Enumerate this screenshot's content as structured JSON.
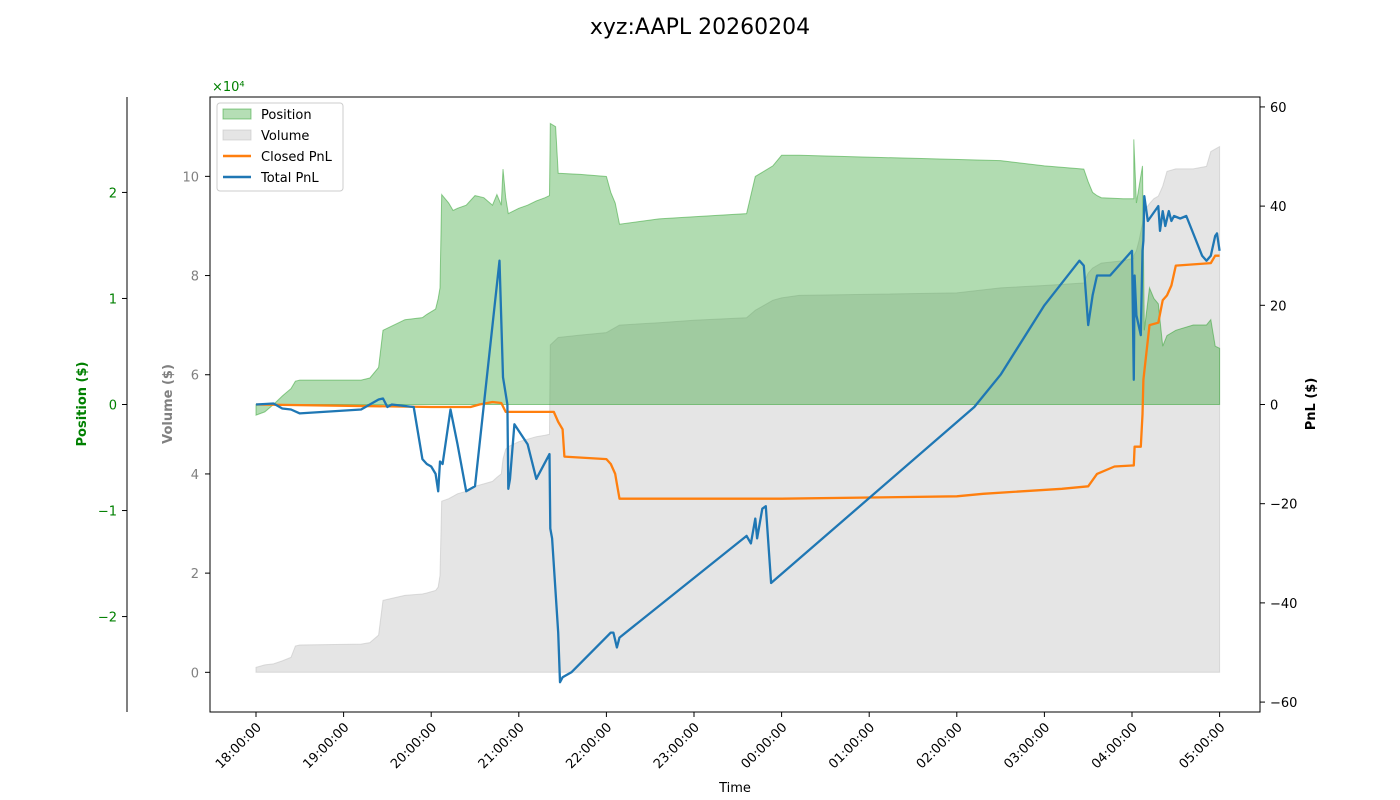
{
  "chart_data": {
    "type": "line",
    "title": "xyz:AAPL 20260204",
    "xlabel": "Time",
    "x_ticks": [
      "18:00:00",
      "19:00:00",
      "20:00:00",
      "21:00:00",
      "22:00:00",
      "23:00:00",
      "00:00:00",
      "01:00:00",
      "02:00:00",
      "03:00:00",
      "04:00:00",
      "05:00:00"
    ],
    "axes": {
      "position": {
        "label": "Position ($)",
        "ylim": [
          -2.9,
          2.9
        ],
        "ticks": [
          -2,
          -1,
          0,
          1,
          2
        ],
        "tick_labels": [
          "−2",
          "−1",
          "0",
          "1",
          "2"
        ],
        "exponent_label": "×10⁴",
        "color": "#008000"
      },
      "volume": {
        "label": "Volume ($)",
        "ylim": [
          -0.8,
          11.6
        ],
        "ticks": [
          0,
          2,
          4,
          6,
          8,
          10
        ],
        "tick_labels": [
          "0",
          "2",
          "4",
          "6",
          "8",
          "10"
        ],
        "color": "#808080"
      },
      "pnl": {
        "label": "PnL ($)",
        "ylim": [
          -62,
          62
        ],
        "ticks": [
          -60,
          -40,
          -20,
          0,
          20,
          40,
          60
        ],
        "tick_labels": [
          "−60",
          "−40",
          "−20",
          "0",
          "20",
          "40",
          "60"
        ],
        "color": "#000000"
      }
    },
    "legend": {
      "placement": "top-left",
      "entries": [
        "Position",
        "Volume",
        "Closed PnL",
        "Total PnL"
      ]
    },
    "colors": {
      "position": "#2ca02c",
      "volume": "#bdbdbd",
      "closed_pnl": "#ff7f0e",
      "total_pnl": "#1f77b4"
    },
    "series": [
      {
        "name": "Position",
        "axis": "position",
        "points": [
          [
            0.0,
            -0.1
          ],
          [
            0.1,
            -0.07
          ],
          [
            0.2,
            0.0
          ],
          [
            0.3,
            0.08
          ],
          [
            0.4,
            0.15
          ],
          [
            0.45,
            0.22
          ],
          [
            0.5,
            0.23
          ],
          [
            1.2,
            0.23
          ],
          [
            1.3,
            0.25
          ],
          [
            1.4,
            0.35
          ],
          [
            1.45,
            0.7
          ],
          [
            1.5,
            0.72
          ],
          [
            1.7,
            0.8
          ],
          [
            1.9,
            0.82
          ],
          [
            1.95,
            0.85
          ],
          [
            2.05,
            0.9
          ],
          [
            2.08,
            1.0
          ],
          [
            2.1,
            1.1
          ],
          [
            2.12,
            1.98
          ],
          [
            2.2,
            1.9
          ],
          [
            2.25,
            1.83
          ],
          [
            2.3,
            1.85
          ],
          [
            2.4,
            1.88
          ],
          [
            2.5,
            1.97
          ],
          [
            2.6,
            1.95
          ],
          [
            2.7,
            1.88
          ],
          [
            2.75,
            1.98
          ],
          [
            2.8,
            1.88
          ],
          [
            2.82,
            2.22
          ],
          [
            2.85,
            1.95
          ],
          [
            2.88,
            1.8
          ],
          [
            3.0,
            1.85
          ],
          [
            3.1,
            1.88
          ],
          [
            3.2,
            1.92
          ],
          [
            3.3,
            1.95
          ],
          [
            3.35,
            1.97
          ],
          [
            3.36,
            2.65
          ],
          [
            3.42,
            2.62
          ],
          [
            3.45,
            2.18
          ],
          [
            3.7,
            2.17
          ],
          [
            4.0,
            2.15
          ],
          [
            4.05,
            2.0
          ],
          [
            4.1,
            1.9
          ],
          [
            4.15,
            1.7
          ],
          [
            4.6,
            1.75
          ],
          [
            5.0,
            1.77
          ],
          [
            5.6,
            1.8
          ],
          [
            5.7,
            2.15
          ],
          [
            5.8,
            2.2
          ],
          [
            5.9,
            2.25
          ],
          [
            6.0,
            2.35
          ],
          [
            6.2,
            2.35
          ],
          [
            8.5,
            2.3
          ],
          [
            9.0,
            2.25
          ],
          [
            9.45,
            2.22
          ],
          [
            9.5,
            2.1
          ],
          [
            9.55,
            2.0
          ],
          [
            9.6,
            1.97
          ],
          [
            9.65,
            1.95
          ],
          [
            9.9,
            1.94
          ],
          [
            10.02,
            1.94
          ],
          [
            10.02,
            2.5
          ],
          [
            10.05,
            1.9
          ],
          [
            10.08,
            2.05
          ],
          [
            10.12,
            2.25
          ],
          [
            10.14,
            0.7
          ],
          [
            10.2,
            1.1
          ],
          [
            10.25,
            1.0
          ],
          [
            10.3,
            0.95
          ],
          [
            10.35,
            0.55
          ],
          [
            10.4,
            0.65
          ],
          [
            10.5,
            0.7
          ],
          [
            10.7,
            0.75
          ],
          [
            10.85,
            0.75
          ],
          [
            10.9,
            0.8
          ],
          [
            10.95,
            0.55
          ],
          [
            11.0,
            0.53
          ]
        ]
      },
      {
        "name": "Volume",
        "axis": "volume",
        "points": [
          [
            0.0,
            0.1
          ],
          [
            0.1,
            0.15
          ],
          [
            0.2,
            0.17
          ],
          [
            0.3,
            0.23
          ],
          [
            0.4,
            0.3
          ],
          [
            0.45,
            0.53
          ],
          [
            0.5,
            0.55
          ],
          [
            1.2,
            0.57
          ],
          [
            1.3,
            0.6
          ],
          [
            1.4,
            0.75
          ],
          [
            1.45,
            1.45
          ],
          [
            1.5,
            1.47
          ],
          [
            1.7,
            1.55
          ],
          [
            1.9,
            1.58
          ],
          [
            1.95,
            1.6
          ],
          [
            2.05,
            1.65
          ],
          [
            2.08,
            1.72
          ],
          [
            2.1,
            1.95
          ],
          [
            2.12,
            3.45
          ],
          [
            2.2,
            3.5
          ],
          [
            2.25,
            3.55
          ],
          [
            2.3,
            3.6
          ],
          [
            2.4,
            3.65
          ],
          [
            2.5,
            3.75
          ],
          [
            2.6,
            3.8
          ],
          [
            2.7,
            3.85
          ],
          [
            2.75,
            3.93
          ],
          [
            2.8,
            4.0
          ],
          [
            2.82,
            4.3
          ],
          [
            2.85,
            4.5
          ],
          [
            2.88,
            4.55
          ],
          [
            3.0,
            4.65
          ],
          [
            3.1,
            4.7
          ],
          [
            3.2,
            4.75
          ],
          [
            3.3,
            4.78
          ],
          [
            3.35,
            4.8
          ],
          [
            3.36,
            6.6
          ],
          [
            3.42,
            6.7
          ],
          [
            3.45,
            6.75
          ],
          [
            3.7,
            6.8
          ],
          [
            4.0,
            6.85
          ],
          [
            4.05,
            6.9
          ],
          [
            4.1,
            6.95
          ],
          [
            4.15,
            7.0
          ],
          [
            4.6,
            7.05
          ],
          [
            5.0,
            7.1
          ],
          [
            5.6,
            7.15
          ],
          [
            5.7,
            7.3
          ],
          [
            5.8,
            7.4
          ],
          [
            5.9,
            7.5
          ],
          [
            6.0,
            7.55
          ],
          [
            6.2,
            7.6
          ],
          [
            8.0,
            7.65
          ],
          [
            8.5,
            7.75
          ],
          [
            9.0,
            7.8
          ],
          [
            9.45,
            7.85
          ],
          [
            9.5,
            8.05
          ],
          [
            9.55,
            8.15
          ],
          [
            9.6,
            8.2
          ],
          [
            9.65,
            8.25
          ],
          [
            9.9,
            8.3
          ],
          [
            10.02,
            8.35
          ],
          [
            10.02,
            8.4
          ],
          [
            10.05,
            8.5
          ],
          [
            10.08,
            8.7
          ],
          [
            10.12,
            9.05
          ],
          [
            10.14,
            9.3
          ],
          [
            10.2,
            9.45
          ],
          [
            10.25,
            9.55
          ],
          [
            10.3,
            9.6
          ],
          [
            10.35,
            9.8
          ],
          [
            10.4,
            10.1
          ],
          [
            10.5,
            10.15
          ],
          [
            10.7,
            10.15
          ],
          [
            10.85,
            10.2
          ],
          [
            10.9,
            10.5
          ],
          [
            10.95,
            10.55
          ],
          [
            11.0,
            10.6
          ]
        ]
      },
      {
        "name": "Closed PnL",
        "axis": "pnl",
        "points": [
          [
            0.0,
            0.0
          ],
          [
            2.0,
            -0.5
          ],
          [
            2.45,
            -0.5
          ],
          [
            2.55,
            0.0
          ],
          [
            2.7,
            0.5
          ],
          [
            2.8,
            0.3
          ],
          [
            2.85,
            -1.5
          ],
          [
            3.2,
            -1.5
          ],
          [
            3.4,
            -1.5
          ],
          [
            3.45,
            -3.5
          ],
          [
            3.5,
            -5.0
          ],
          [
            3.52,
            -10.5
          ],
          [
            4.0,
            -11.0
          ],
          [
            4.05,
            -12.0
          ],
          [
            4.1,
            -14.0
          ],
          [
            4.12,
            -16.0
          ],
          [
            4.15,
            -19.0
          ],
          [
            6.0,
            -19.0
          ],
          [
            8.0,
            -18.5
          ],
          [
            8.3,
            -18.0
          ],
          [
            9.2,
            -17.0
          ],
          [
            9.5,
            -16.5
          ],
          [
            9.6,
            -14.0
          ],
          [
            9.8,
            -12.5
          ],
          [
            10.0,
            -12.3
          ],
          [
            10.02,
            -12.3
          ],
          [
            10.03,
            -8.5
          ],
          [
            10.1,
            -8.5
          ],
          [
            10.12,
            -2.0
          ],
          [
            10.13,
            5.0
          ],
          [
            10.2,
            16.0
          ],
          [
            10.3,
            16.5
          ],
          [
            10.35,
            21.0
          ],
          [
            10.4,
            22.0
          ],
          [
            10.45,
            24.0
          ],
          [
            10.5,
            28.0
          ],
          [
            10.9,
            28.5
          ],
          [
            10.95,
            30.0
          ],
          [
            11.0,
            30.0
          ]
        ]
      },
      {
        "name": "Total PnL",
        "axis": "pnl",
        "points": [
          [
            0.0,
            0.0
          ],
          [
            0.2,
            0.2
          ],
          [
            0.3,
            -0.8
          ],
          [
            0.4,
            -1.0
          ],
          [
            0.5,
            -1.8
          ],
          [
            1.2,
            -1.0
          ],
          [
            1.4,
            1.0
          ],
          [
            1.45,
            1.2
          ],
          [
            1.5,
            -0.5
          ],
          [
            1.55,
            0.0
          ],
          [
            1.8,
            -0.5
          ],
          [
            1.9,
            -11.0
          ],
          [
            1.95,
            -12.0
          ],
          [
            2.0,
            -12.5
          ],
          [
            2.05,
            -14.0
          ],
          [
            2.08,
            -17.5
          ],
          [
            2.1,
            -11.5
          ],
          [
            2.13,
            -12.0
          ],
          [
            2.22,
            -1.0
          ],
          [
            2.3,
            -8.0
          ],
          [
            2.4,
            -17.5
          ],
          [
            2.5,
            -16.5
          ],
          [
            2.78,
            29.0
          ],
          [
            2.82,
            5.5
          ],
          [
            2.87,
            0.0
          ],
          [
            2.88,
            -17.0
          ],
          [
            2.9,
            -15.0
          ],
          [
            2.95,
            -4.0
          ],
          [
            3.1,
            -8.0
          ],
          [
            3.2,
            -15.0
          ],
          [
            3.35,
            -10.0
          ],
          [
            3.36,
            -25.0
          ],
          [
            3.38,
            -27.0
          ],
          [
            3.45,
            -46.0
          ],
          [
            3.47,
            -56.0
          ],
          [
            3.5,
            -55.0
          ],
          [
            3.6,
            -54.0
          ],
          [
            4.05,
            -46.0
          ],
          [
            4.08,
            -46.0
          ],
          [
            4.12,
            -49.0
          ],
          [
            4.15,
            -47.0
          ],
          [
            5.6,
            -26.5
          ],
          [
            5.65,
            -28.0
          ],
          [
            5.7,
            -23.0
          ],
          [
            5.72,
            -27.0
          ],
          [
            5.78,
            -21.0
          ],
          [
            5.82,
            -20.5
          ],
          [
            5.88,
            -36.0
          ],
          [
            8.2,
            -0.5
          ],
          [
            8.5,
            6.0
          ],
          [
            9.0,
            20.0
          ],
          [
            9.4,
            29.0
          ],
          [
            9.45,
            28.0
          ],
          [
            9.5,
            16.0
          ],
          [
            9.55,
            22.0
          ],
          [
            9.6,
            26.0
          ],
          [
            9.75,
            26.0
          ],
          [
            10.0,
            31.0
          ],
          [
            10.02,
            5.0
          ],
          [
            10.03,
            26.0
          ],
          [
            10.05,
            18.0
          ],
          [
            10.1,
            14.0
          ],
          [
            10.12,
            31.0
          ],
          [
            10.13,
            33.0
          ],
          [
            10.14,
            42.0
          ],
          [
            10.18,
            37.0
          ],
          [
            10.3,
            40.0
          ],
          [
            10.32,
            35.0
          ],
          [
            10.35,
            39.0
          ],
          [
            10.38,
            36.0
          ],
          [
            10.42,
            39.0
          ],
          [
            10.45,
            37.0
          ],
          [
            10.48,
            38.0
          ],
          [
            10.55,
            37.5
          ],
          [
            10.62,
            38.0
          ],
          [
            10.8,
            30.0
          ],
          [
            10.85,
            29.0
          ],
          [
            10.9,
            30.0
          ],
          [
            10.95,
            34.0
          ],
          [
            10.97,
            34.5
          ],
          [
            11.0,
            31.0
          ]
        ]
      }
    ]
  }
}
